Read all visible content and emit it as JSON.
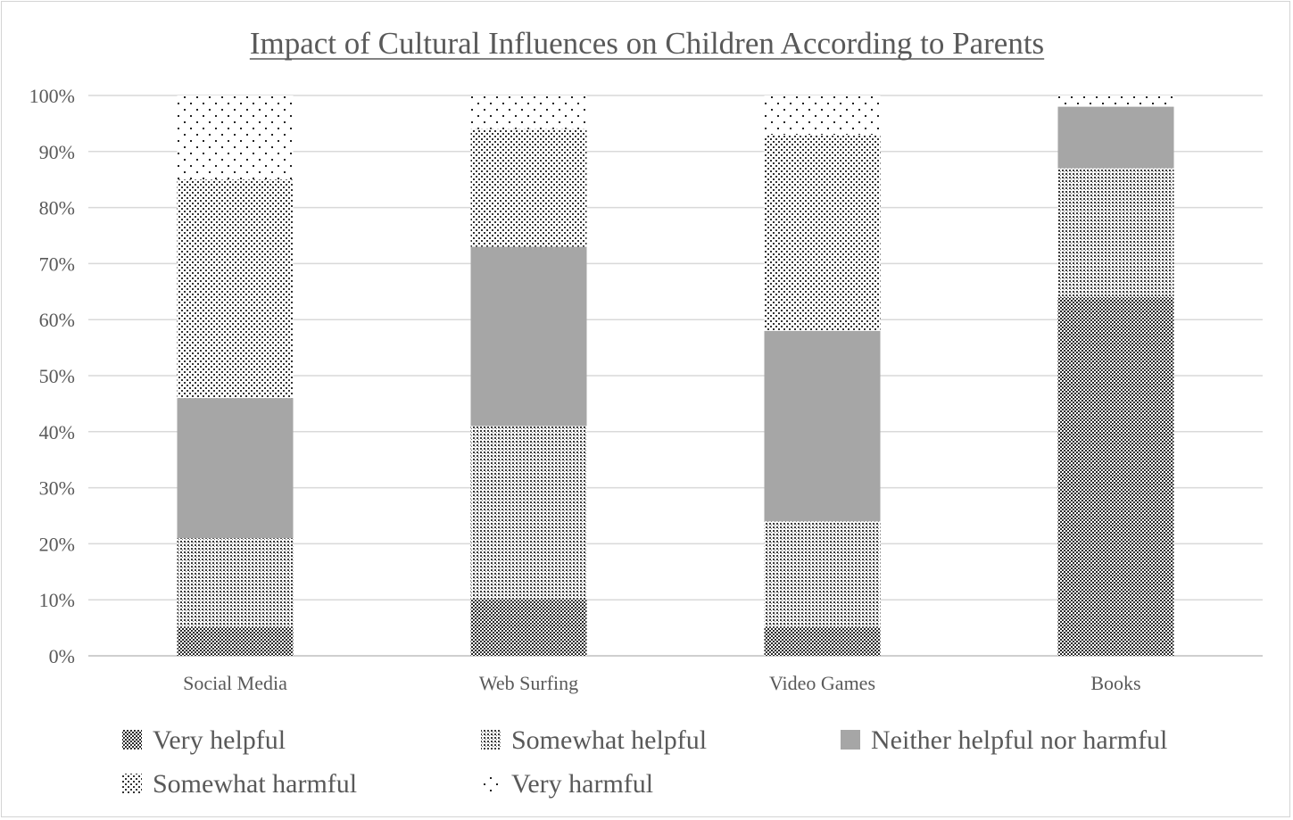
{
  "chart_data": {
    "type": "bar",
    "stacked": true,
    "title": "Impact of Cultural Influences on Children According to Parents",
    "xlabel": "",
    "ylabel": "",
    "categories": [
      "Social Media",
      "Web Surfing",
      "Video Games",
      "Books"
    ],
    "ylim": [
      0,
      100
    ],
    "y_ticks": [
      "0%",
      "10%",
      "20%",
      "30%",
      "40%",
      "50%",
      "60%",
      "70%",
      "80%",
      "90%",
      "100%"
    ],
    "grid": true,
    "legend_position": "bottom",
    "series": [
      {
        "name": "Very helpful",
        "values": [
          5,
          10,
          5,
          64
        ],
        "pattern": "dense-crosshatch"
      },
      {
        "name": "Somewhat helpful",
        "values": [
          16,
          31,
          19,
          23
        ],
        "pattern": "dense-dots"
      },
      {
        "name": "Neither helpful nor harmful",
        "values": [
          25,
          32,
          34,
          11
        ],
        "pattern": "solid",
        "color": "#a6a6a6"
      },
      {
        "name": "Somewhat harmful",
        "values": [
          39,
          21,
          35,
          0
        ],
        "pattern": "medium-dots"
      },
      {
        "name": "Very harmful",
        "values": [
          15,
          6,
          7,
          2
        ],
        "pattern": "sparse-dots"
      }
    ]
  }
}
